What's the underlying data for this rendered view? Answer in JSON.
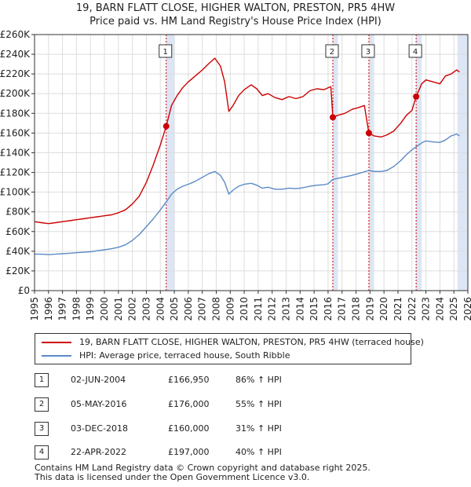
{
  "title": {
    "line1": "19, BARN FLATT CLOSE, HIGHER WALTON, PRESTON, PR5 4HW",
    "line2": "Price paid vs. HM Land Registry's House Price Index (HPI)"
  },
  "colors": {
    "property": "#cc0000",
    "hpi": "#5b8ac6",
    "grid": "#dddddd",
    "shade": "#dde6f5",
    "marker_line": "#cc0000"
  },
  "legend": {
    "property_label": "19, BARN FLATT CLOSE, HIGHER WALTON, PRESTON, PR5 4HW (terraced house)",
    "hpi_label": "HPI: Average price, terraced house, South Ribble"
  },
  "sales": [
    {
      "num": "1",
      "date": "02-JUN-2004",
      "price": "£166,950",
      "hpi": "86% ↑ HPI"
    },
    {
      "num": "2",
      "date": "05-MAY-2016",
      "price": "£176,000",
      "hpi": "55% ↑ HPI"
    },
    {
      "num": "3",
      "date": "03-DEC-2018",
      "price": "£160,000",
      "hpi": "31% ↑ HPI"
    },
    {
      "num": "4",
      "date": "22-APR-2022",
      "price": "£197,000",
      "hpi": "40% ↑ HPI"
    }
  ],
  "footer": {
    "line1": "Contains HM Land Registry data © Crown copyright and database right 2025.",
    "line2": "This data is licensed under the Open Government Licence v3.0."
  },
  "chart_data": {
    "type": "line",
    "title": "19, BARN FLATT CLOSE, HIGHER WALTON, PRESTON, PR5 4HW — Price paid vs. HM Land Registry's House Price Index (HPI)",
    "xlim": [
      1995,
      2026
    ],
    "ylim": [
      0,
      260000
    ],
    "x_ticks": [
      1995,
      1996,
      1997,
      1998,
      1999,
      2000,
      2001,
      2002,
      2003,
      2004,
      2005,
      2006,
      2007,
      2008,
      2009,
      2010,
      2011,
      2012,
      2013,
      2014,
      2015,
      2016,
      2017,
      2018,
      2019,
      2020,
      2021,
      2022,
      2023,
      2024,
      2025,
      2026
    ],
    "y_ticks": [
      {
        "value": 0,
        "label": "£0"
      },
      {
        "value": 20000,
        "label": "£20K"
      },
      {
        "value": 40000,
        "label": "£40K"
      },
      {
        "value": 60000,
        "label": "£60K"
      },
      {
        "value": 80000,
        "label": "£80K"
      },
      {
        "value": 100000,
        "label": "£100K"
      },
      {
        "value": 120000,
        "label": "£120K"
      },
      {
        "value": 140000,
        "label": "£140K"
      },
      {
        "value": 160000,
        "label": "£160K"
      },
      {
        "value": 180000,
        "label": "£180K"
      },
      {
        "value": 200000,
        "label": "£200K"
      },
      {
        "value": 220000,
        "label": "£220K"
      },
      {
        "value": 240000,
        "label": "£240K"
      },
      {
        "value": 260000,
        "label": "£260K"
      }
    ],
    "shaded_ranges": [
      [
        2004.42,
        2005.0
      ],
      [
        2016.34,
        2016.7
      ],
      [
        2018.92,
        2019.3
      ],
      [
        2022.3,
        2022.7
      ],
      [
        2025.25,
        2026.0
      ]
    ],
    "series": [
      {
        "name": "19, BARN FLATT CLOSE, HIGHER WALTON, PRESTON, PR5 4HW (terraced house)",
        "color": "#cc0000",
        "points": [
          [
            1995.0,
            70000
          ],
          [
            1995.5,
            69000
          ],
          [
            1996.0,
            68000
          ],
          [
            1996.5,
            69000
          ],
          [
            1997.0,
            70000
          ],
          [
            1997.5,
            71000
          ],
          [
            1998.0,
            72000
          ],
          [
            1998.5,
            73000
          ],
          [
            1999.0,
            74000
          ],
          [
            1999.5,
            75000
          ],
          [
            2000.0,
            76000
          ],
          [
            2000.5,
            77000
          ],
          [
            2001.0,
            79000
          ],
          [
            2001.5,
            82000
          ],
          [
            2002.0,
            88000
          ],
          [
            2002.5,
            96000
          ],
          [
            2003.0,
            110000
          ],
          [
            2003.5,
            128000
          ],
          [
            2004.0,
            148000
          ],
          [
            2004.42,
            166950
          ],
          [
            2004.8,
            188000
          ],
          [
            2005.2,
            198000
          ],
          [
            2005.6,
            206000
          ],
          [
            2006.0,
            212000
          ],
          [
            2006.5,
            218000
          ],
          [
            2007.0,
            224000
          ],
          [
            2007.5,
            231000
          ],
          [
            2007.9,
            236000
          ],
          [
            2008.3,
            228000
          ],
          [
            2008.6,
            212000
          ],
          [
            2008.9,
            182000
          ],
          [
            2009.2,
            188000
          ],
          [
            2009.6,
            198000
          ],
          [
            2010.0,
            204000
          ],
          [
            2010.5,
            209000
          ],
          [
            2010.9,
            205000
          ],
          [
            2011.3,
            198000
          ],
          [
            2011.7,
            200000
          ],
          [
            2012.2,
            196000
          ],
          [
            2012.7,
            194000
          ],
          [
            2013.2,
            197000
          ],
          [
            2013.7,
            195000
          ],
          [
            2014.2,
            197000
          ],
          [
            2014.7,
            203000
          ],
          [
            2015.2,
            205000
          ],
          [
            2015.7,
            204000
          ],
          [
            2016.0,
            206000
          ],
          [
            2016.2,
            207000
          ],
          [
            2016.34,
            176000
          ],
          [
            2016.7,
            178000
          ],
          [
            2017.2,
            180000
          ],
          [
            2017.7,
            184000
          ],
          [
            2018.2,
            186000
          ],
          [
            2018.6,
            188000
          ],
          [
            2018.92,
            160000
          ],
          [
            2019.3,
            157000
          ],
          [
            2019.8,
            156000
          ],
          [
            2020.2,
            158000
          ],
          [
            2020.7,
            162000
          ],
          [
            2021.2,
            170000
          ],
          [
            2021.6,
            178000
          ],
          [
            2022.0,
            183000
          ],
          [
            2022.3,
            197000
          ],
          [
            2022.7,
            210000
          ],
          [
            2023.0,
            214000
          ],
          [
            2023.5,
            212000
          ],
          [
            2024.0,
            210000
          ],
          [
            2024.4,
            218000
          ],
          [
            2024.8,
            220000
          ],
          [
            2025.2,
            224000
          ],
          [
            2025.4,
            222000
          ]
        ]
      },
      {
        "name": "HPI: Average price, terraced house, South Ribble",
        "color": "#5b8ac6",
        "points": [
          [
            1995.0,
            37000
          ],
          [
            1995.5,
            37000
          ],
          [
            1996.0,
            36500
          ],
          [
            1996.5,
            37000
          ],
          [
            1997.0,
            37500
          ],
          [
            1997.5,
            38000
          ],
          [
            1998.0,
            38500
          ],
          [
            1998.5,
            39000
          ],
          [
            1999.0,
            39500
          ],
          [
            1999.5,
            40500
          ],
          [
            2000.0,
            41500
          ],
          [
            2000.5,
            42500
          ],
          [
            2001.0,
            44000
          ],
          [
            2001.5,
            46500
          ],
          [
            2002.0,
            51000
          ],
          [
            2002.5,
            57000
          ],
          [
            2003.0,
            65000
          ],
          [
            2003.5,
            73000
          ],
          [
            2004.0,
            82000
          ],
          [
            2004.42,
            90000
          ],
          [
            2004.8,
            98000
          ],
          [
            2005.2,
            103000
          ],
          [
            2005.6,
            106000
          ],
          [
            2006.0,
            108000
          ],
          [
            2006.5,
            111000
          ],
          [
            2007.0,
            115000
          ],
          [
            2007.5,
            119000
          ],
          [
            2007.9,
            121000
          ],
          [
            2008.3,
            117000
          ],
          [
            2008.6,
            110000
          ],
          [
            2008.9,
            98000
          ],
          [
            2009.2,
            102000
          ],
          [
            2009.6,
            106000
          ],
          [
            2010.0,
            108000
          ],
          [
            2010.5,
            109000
          ],
          [
            2010.9,
            107000
          ],
          [
            2011.3,
            104000
          ],
          [
            2011.7,
            105000
          ],
          [
            2012.2,
            103000
          ],
          [
            2012.7,
            103000
          ],
          [
            2013.2,
            104000
          ],
          [
            2013.7,
            103500
          ],
          [
            2014.2,
            104500
          ],
          [
            2014.7,
            106000
          ],
          [
            2015.2,
            107000
          ],
          [
            2015.7,
            107500
          ],
          [
            2016.0,
            108500
          ],
          [
            2016.34,
            113000
          ],
          [
            2016.7,
            114000
          ],
          [
            2017.2,
            115500
          ],
          [
            2017.7,
            117000
          ],
          [
            2018.2,
            119000
          ],
          [
            2018.92,
            122000
          ],
          [
            2019.3,
            121000
          ],
          [
            2019.8,
            121000
          ],
          [
            2020.2,
            122000
          ],
          [
            2020.7,
            126000
          ],
          [
            2021.2,
            132000
          ],
          [
            2021.6,
            138000
          ],
          [
            2022.0,
            143000
          ],
          [
            2022.3,
            146000
          ],
          [
            2022.7,
            150000
          ],
          [
            2023.0,
            152000
          ],
          [
            2023.5,
            151000
          ],
          [
            2024.0,
            150500
          ],
          [
            2024.4,
            153000
          ],
          [
            2024.8,
            157000
          ],
          [
            2025.2,
            159000
          ],
          [
            2025.4,
            157000
          ]
        ]
      }
    ],
    "sale_markers": [
      {
        "label": "1",
        "x": 2004.42,
        "y": 166950
      },
      {
        "label": "2",
        "x": 2016.34,
        "y": 176000
      },
      {
        "label": "3",
        "x": 2018.92,
        "y": 160000
      },
      {
        "label": "4",
        "x": 2022.3,
        "y": 197000
      }
    ]
  }
}
